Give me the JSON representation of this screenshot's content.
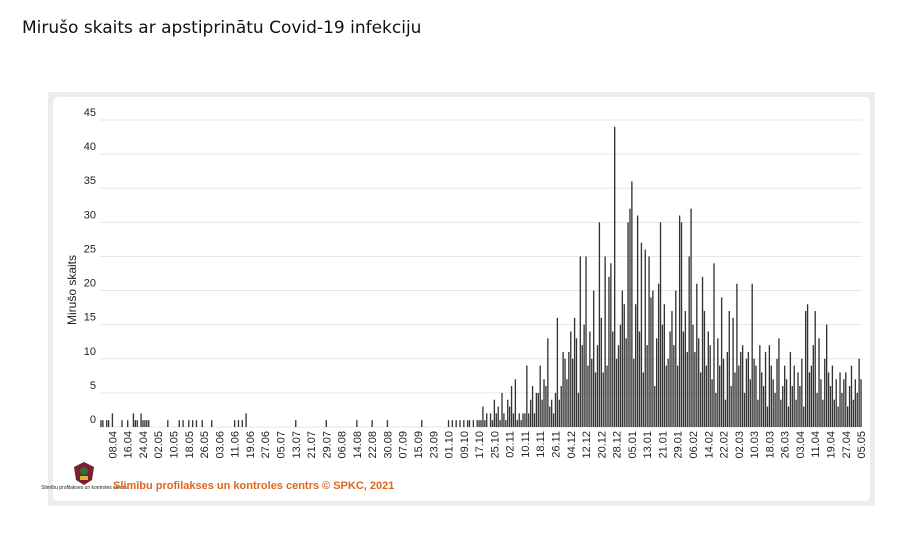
{
  "chart_data": {
    "type": "bar",
    "title": "Mirušo skaits ar apstiprinātu Covid-19 infekciju",
    "y_label": "Mirušo skaits",
    "source": "Slimību profilakses un kontroles centrs © SPKC, 2021",
    "logo_text": "Slimību profilakses un kontroles centrs",
    "color": "#333333",
    "grid": true,
    "ylim": [
      0,
      45
    ],
    "yticks": [
      0,
      5,
      10,
      15,
      20,
      25,
      30,
      35,
      40,
      45
    ],
    "categories": [
      null,
      null,
      null,
      null,
      null,
      null,
      "08.04",
      null,
      null,
      null,
      null,
      null,
      null,
      null,
      "16.04",
      null,
      null,
      null,
      null,
      null,
      null,
      null,
      "24.04",
      null,
      null,
      null,
      null,
      null,
      null,
      null,
      "02.05",
      null,
      null,
      null,
      null,
      null,
      null,
      null,
      "10.05",
      null,
      null,
      null,
      null,
      null,
      null,
      null,
      "18.05",
      null,
      null,
      null,
      null,
      null,
      null,
      null,
      "26.05",
      null,
      null,
      null,
      null,
      null,
      null,
      null,
      "03.06",
      null,
      null,
      null,
      null,
      null,
      null,
      null,
      "11.06",
      null,
      null,
      null,
      null,
      null,
      null,
      null,
      "19.06",
      null,
      null,
      null,
      null,
      null,
      null,
      null,
      "27.06",
      null,
      null,
      null,
      null,
      null,
      null,
      null,
      "05.07",
      null,
      null,
      null,
      null,
      null,
      null,
      null,
      "13.07",
      null,
      null,
      null,
      null,
      null,
      null,
      null,
      "21.07",
      null,
      null,
      null,
      null,
      null,
      null,
      null,
      "29.07",
      null,
      null,
      null,
      null,
      null,
      null,
      null,
      "06.08",
      null,
      null,
      null,
      null,
      null,
      null,
      null,
      "14.08",
      null,
      null,
      null,
      null,
      null,
      null,
      null,
      "22.08",
      null,
      null,
      null,
      null,
      null,
      null,
      null,
      "30.08",
      null,
      null,
      null,
      null,
      null,
      null,
      null,
      "07.09",
      null,
      null,
      null,
      null,
      null,
      null,
      null,
      "15.09",
      null,
      null,
      null,
      null,
      null,
      null,
      null,
      "23.09",
      null,
      null,
      null,
      null,
      null,
      null,
      null,
      "01.10",
      null,
      null,
      null,
      null,
      null,
      null,
      null,
      "09.10",
      null,
      null,
      null,
      null,
      null,
      null,
      null,
      "17.10",
      null,
      null,
      null,
      null,
      null,
      null,
      null,
      "25.10",
      null,
      null,
      null,
      null,
      null,
      null,
      null,
      "02.11",
      null,
      null,
      null,
      null,
      null,
      null,
      null,
      "10.11",
      null,
      null,
      null,
      null,
      null,
      null,
      null,
      "18.11",
      null,
      null,
      null,
      null,
      null,
      null,
      null,
      "26.11",
      null,
      null,
      null,
      null,
      null,
      null,
      null,
      "04.12",
      null,
      null,
      null,
      null,
      null,
      null,
      null,
      "12.12",
      null,
      null,
      null,
      null,
      null,
      null,
      null,
      "20.12",
      null,
      null,
      null,
      null,
      null,
      null,
      null,
      "28.12",
      null,
      null,
      null,
      null,
      null,
      null,
      null,
      "05.01",
      null,
      null,
      null,
      null,
      null,
      null,
      null,
      "13.01",
      null,
      null,
      null,
      null,
      null,
      null,
      null,
      "21.01",
      null,
      null,
      null,
      null,
      null,
      null,
      null,
      "29.01",
      null,
      null,
      null,
      null,
      null,
      null,
      null,
      "06.02",
      null,
      null,
      null,
      null,
      null,
      null,
      null,
      "14.02",
      null,
      null,
      null,
      null,
      null,
      null,
      null,
      "22.02",
      null,
      null,
      null,
      null,
      null,
      null,
      null,
      "02.03",
      null,
      null,
      null,
      null,
      null,
      null,
      null,
      "10.03",
      null,
      null,
      null,
      null,
      null,
      null,
      null,
      "18.03",
      null,
      null,
      null,
      null,
      null,
      null,
      null,
      "26.03",
      null,
      null,
      null,
      null,
      null,
      null,
      null,
      "03.04",
      null,
      null,
      null,
      null,
      null,
      null,
      null,
      "11.04",
      null,
      null,
      null,
      null,
      null,
      null,
      null,
      "19.04",
      null,
      null,
      null,
      null,
      null,
      null,
      null,
      "27.04",
      null,
      null,
      null,
      null,
      null,
      null,
      null,
      "05.05"
    ],
    "values": [
      1,
      1,
      0,
      1,
      1,
      0,
      2,
      0,
      0,
      0,
      0,
      1,
      0,
      0,
      1,
      0,
      0,
      2,
      1,
      1,
      0,
      2,
      1,
      1,
      1,
      1,
      0,
      0,
      0,
      0,
      0,
      0,
      0,
      0,
      0,
      1,
      0,
      0,
      0,
      0,
      0,
      1,
      0,
      1,
      0,
      0,
      1,
      0,
      1,
      0,
      1,
      0,
      0,
      1,
      0,
      0,
      0,
      0,
      1,
      0,
      0,
      0,
      0,
      0,
      0,
      0,
      0,
      0,
      0,
      0,
      1,
      0,
      1,
      0,
      1,
      0,
      2,
      0,
      0,
      0,
      0,
      0,
      0,
      0,
      0,
      0,
      0,
      0,
      0,
      0,
      0,
      0,
      0,
      0,
      0,
      0,
      0,
      0,
      0,
      0,
      0,
      0,
      1,
      0,
      0,
      0,
      0,
      0,
      0,
      0,
      0,
      0,
      0,
      0,
      0,
      0,
      0,
      0,
      1,
      0,
      0,
      0,
      0,
      0,
      0,
      0,
      0,
      0,
      0,
      0,
      0,
      0,
      0,
      0,
      1,
      0,
      0,
      0,
      0,
      0,
      0,
      0,
      1,
      0,
      0,
      0,
      0,
      0,
      0,
      0,
      1,
      0,
      0,
      0,
      0,
      0,
      0,
      0,
      0,
      0,
      0,
      0,
      0,
      0,
      0,
      0,
      0,
      0,
      1,
      0,
      0,
      0,
      0,
      0,
      0,
      0,
      0,
      0,
      0,
      0,
      0,
      0,
      1,
      0,
      1,
      0,
      1,
      0,
      1,
      0,
      1,
      0,
      1,
      1,
      0,
      1,
      0,
      1,
      1,
      1,
      3,
      1,
      2,
      0,
      2,
      1,
      4,
      2,
      3,
      1,
      5,
      2,
      1,
      4,
      3,
      6,
      2,
      7,
      1,
      2,
      1,
      2,
      2,
      9,
      2,
      4,
      6,
      2,
      5,
      5,
      9,
      4,
      7,
      6,
      13,
      3,
      4,
      2,
      5,
      16,
      4,
      6,
      11,
      10,
      7,
      11,
      14,
      10,
      16,
      13,
      5,
      25,
      12,
      15,
      25,
      9,
      14,
      10,
      20,
      8,
      12,
      30,
      16,
      8,
      25,
      9,
      22,
      24,
      14,
      44,
      10,
      12,
      15,
      20,
      18,
      13,
      30,
      32,
      36,
      10,
      18,
      31,
      14,
      27,
      8,
      26,
      12,
      25,
      19,
      20,
      6,
      13,
      21,
      30,
      15,
      18,
      9,
      10,
      14,
      17,
      12,
      20,
      9,
      31,
      30,
      14,
      17,
      11,
      25,
      32,
      15,
      11,
      21,
      13,
      8,
      22,
      17,
      9,
      14,
      12,
      7,
      24,
      5,
      13,
      9,
      19,
      10,
      4,
      11,
      17,
      6,
      16,
      8,
      21,
      9,
      11,
      12,
      5,
      10,
      11,
      7,
      21,
      10,
      9,
      4,
      12,
      8,
      6,
      11,
      3,
      12,
      9,
      7,
      5,
      10,
      13,
      4,
      6,
      9,
      7,
      3,
      11,
      6,
      9,
      4,
      8,
      6,
      10,
      3,
      17,
      18,
      8,
      9,
      12,
      17,
      5,
      13,
      7,
      4,
      10,
      15,
      8,
      6,
      9,
      4,
      7,
      3,
      8,
      5,
      7,
      8,
      3,
      6,
      9,
      4,
      7,
      5,
      10,
      7
    ]
  }
}
